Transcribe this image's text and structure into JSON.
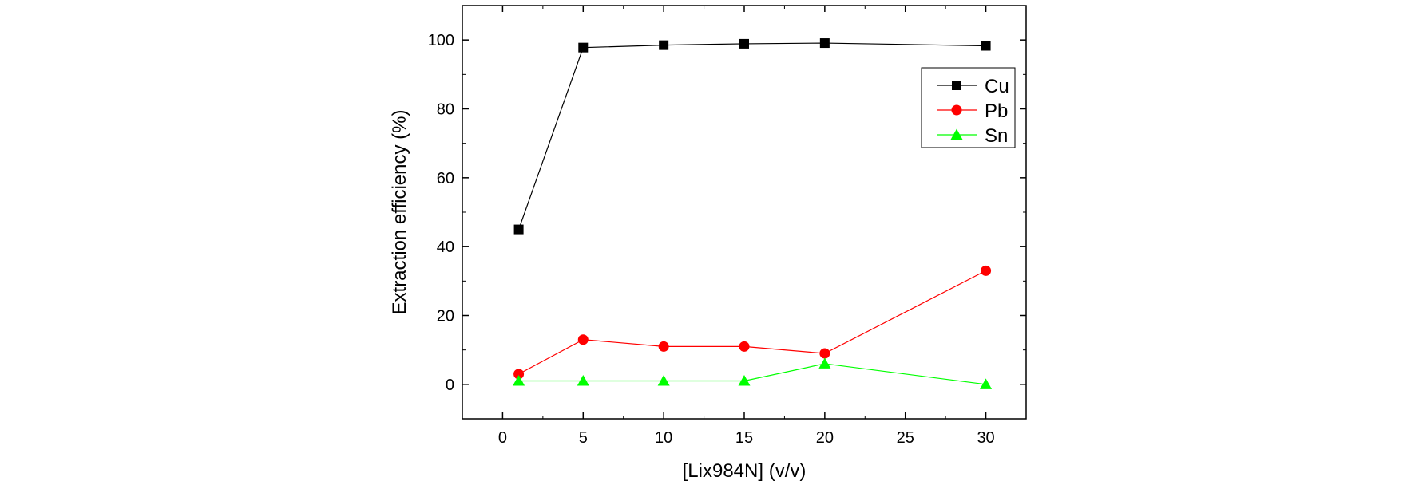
{
  "chart_data": {
    "type": "line",
    "title": "",
    "xlabel": "[Lix984N] (v/v)",
    "ylabel": "Extraction efficiency (%)",
    "xlim": [
      -2.5,
      32.5
    ],
    "ylim": [
      -10,
      110
    ],
    "xticks": [
      0,
      5,
      10,
      15,
      20,
      25,
      30
    ],
    "yticks": [
      0,
      20,
      40,
      60,
      80,
      100
    ],
    "x": [
      1,
      5,
      10,
      15,
      20,
      30
    ],
    "legend_position": "top-right",
    "series": [
      {
        "name": "Cu",
        "color": "#000000",
        "marker": "square",
        "values": [
          45,
          97.8,
          98.5,
          98.9,
          99.1,
          98.3
        ]
      },
      {
        "name": "Pb",
        "color": "#ff0000",
        "marker": "circle",
        "values": [
          3,
          13,
          11,
          11,
          9,
          33
        ]
      },
      {
        "name": "Sn",
        "color": "#00ff00",
        "marker": "triangle",
        "values": [
          1,
          1,
          1,
          1,
          6,
          0
        ]
      }
    ]
  }
}
